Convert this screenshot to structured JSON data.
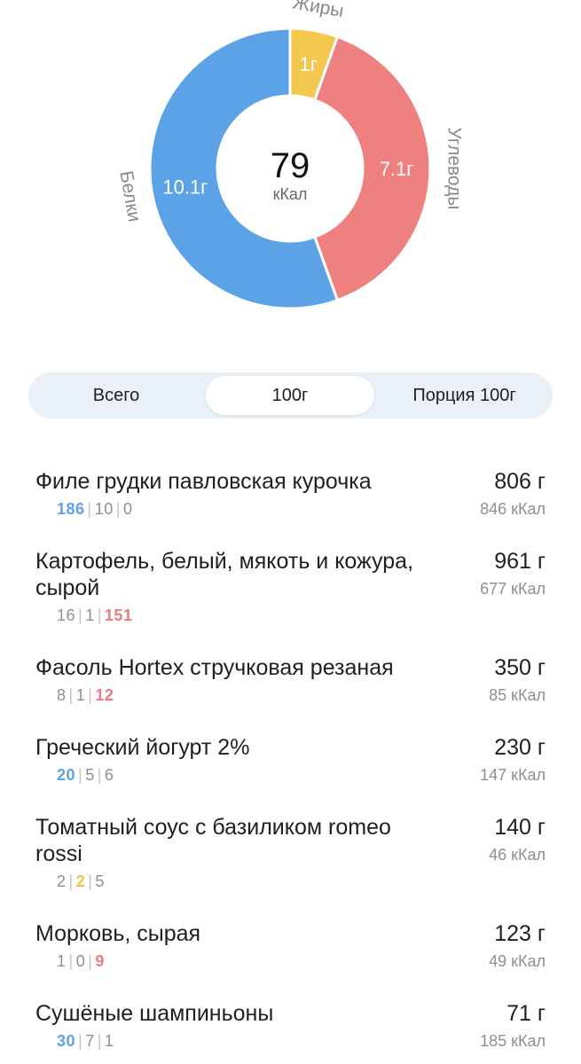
{
  "colors": {
    "protein": "#5ba3e6",
    "carbs": "#ef8080",
    "fat": "#f4c74f",
    "accent_bg": "#e9f0f8"
  },
  "summary": {
    "kcal_value": "79",
    "kcal_unit": "кКал",
    "chart": [
      {
        "key": "protein",
        "label": "Белки",
        "value": 10.1,
        "value_label": "10.1г"
      },
      {
        "key": "carbs",
        "label": "Углеводы",
        "value": 7.1,
        "value_label": "7.1г"
      },
      {
        "key": "fat",
        "label": "Жиры",
        "value": 1,
        "value_label": "1г"
      }
    ]
  },
  "chart_data": {
    "type": "pie",
    "categories": [
      "Белки",
      "Углеводы",
      "Жиры"
    ],
    "values": [
      10.1,
      7.1,
      1
    ],
    "labels": [
      "10.1г",
      "7.1г",
      "1г"
    ]
  },
  "tabs": {
    "total": "Всего",
    "per100": "100г",
    "portion": "Порция 100г",
    "selected": "per100"
  },
  "foods": [
    {
      "name": "Филе грудки павловская курочка",
      "grams": "806 г",
      "kcal": "846 кКал",
      "macros": [
        "186",
        "10",
        "0"
      ],
      "highlight": 0
    },
    {
      "name": "Картофель, белый, мякоть и кожура, сырой",
      "grams": "961 г",
      "kcal": "677 кКал",
      "macros": [
        "16",
        "1",
        "151"
      ],
      "highlight": 2
    },
    {
      "name": "Фасоль Hortex стручковая резаная",
      "grams": "350 г",
      "kcal": "85 кКал",
      "macros": [
        "8",
        "1",
        "12"
      ],
      "highlight": 2
    },
    {
      "name": "Греческий йогурт 2%",
      "grams": "230 г",
      "kcal": "147 кКал",
      "macros": [
        "20",
        "5",
        "6"
      ],
      "highlight": 0
    },
    {
      "name": "Томатный соус с базиликом romeo rossi",
      "grams": "140 г",
      "kcal": "46 кКал",
      "macros": [
        "2",
        "2",
        "5"
      ],
      "highlight": 1
    },
    {
      "name": "Морковь, сырая",
      "grams": "123 г",
      "kcal": "49 кКал",
      "macros": [
        "1",
        "0",
        "9"
      ],
      "highlight": 2
    },
    {
      "name": "Сушёные шампиньоны",
      "grams": "71 г",
      "kcal": "185 кКал",
      "macros": [
        "30",
        "7",
        "1"
      ],
      "highlight": 0
    }
  ]
}
